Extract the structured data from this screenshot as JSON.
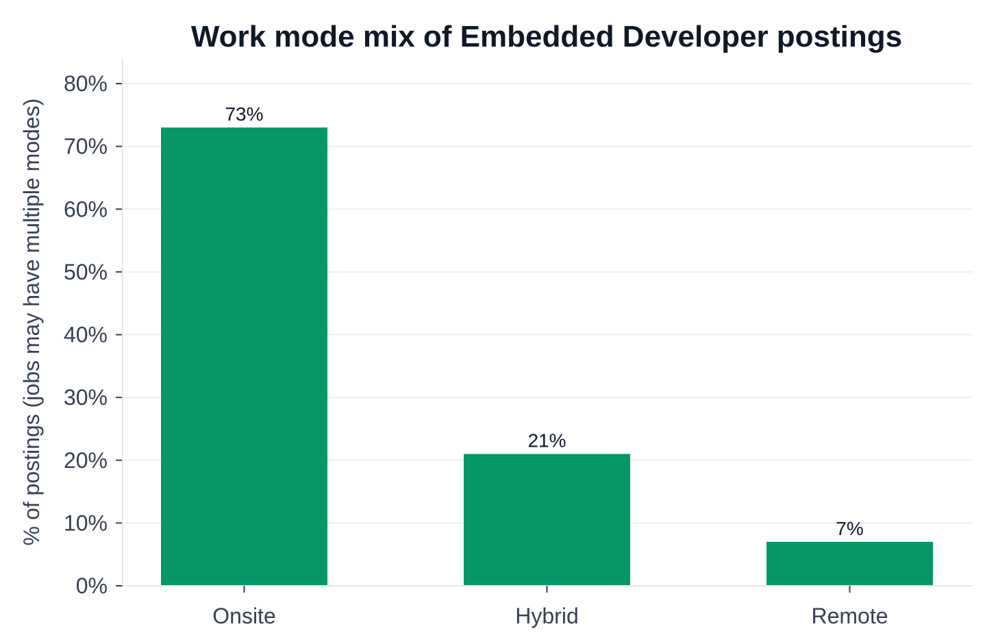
{
  "chart_data": {
    "type": "bar",
    "title": "Work mode mix of Embedded Developer postings",
    "xlabel": "",
    "ylabel": "% of postings (jobs may have multiple modes)",
    "categories": [
      "Onsite",
      "Hybrid",
      "Remote"
    ],
    "values": [
      73,
      21,
      7
    ],
    "data_labels": [
      "73%",
      "21%",
      "7%"
    ],
    "ylim": [
      0,
      84
    ],
    "yticks": [
      0,
      10,
      20,
      30,
      40,
      50,
      60,
      70,
      80
    ],
    "ytick_labels": [
      "0%",
      "10%",
      "20%",
      "30%",
      "40%",
      "50%",
      "60%",
      "70%",
      "80%"
    ],
    "bar_color": "#069668",
    "grid": "horizontal",
    "legend": "none"
  }
}
